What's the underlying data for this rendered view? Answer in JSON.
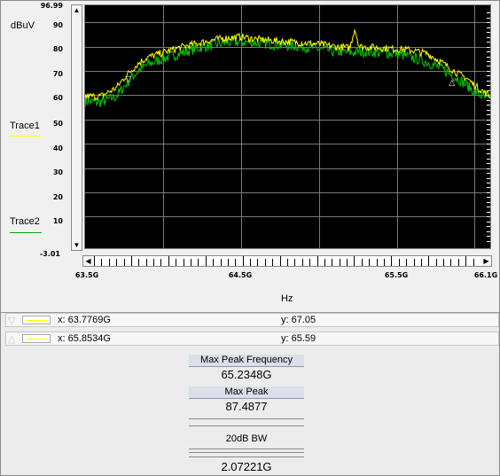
{
  "chart_data": {
    "type": "line",
    "unit_label": "dBuV",
    "xlabel": "Hz",
    "xlim": [
      63.5,
      66.1
    ],
    "ylim": [
      -3.01,
      96.99
    ],
    "y_ticks": [
      "96.99",
      "90",
      "80",
      "70",
      "60",
      "50",
      "40",
      "30",
      "20",
      "10",
      "-3.01"
    ],
    "x_ticks": [
      {
        "v": 63.5,
        "label": "63.5G"
      },
      {
        "v": 64.5,
        "label": "64.5G"
      },
      {
        "v": 65.5,
        "label": "65.5G"
      },
      {
        "v": 66.1,
        "label": "66.1G"
      }
    ],
    "grid": true,
    "series": [
      {
        "name": "Trace1",
        "color": "#ffff00",
        "points": [
          [
            63.5,
            59.5
          ],
          [
            63.6,
            59.5
          ],
          [
            63.7,
            63
          ],
          [
            63.75,
            67
          ],
          [
            63.8,
            70.5
          ],
          [
            63.85,
            73.5
          ],
          [
            63.9,
            75.5
          ],
          [
            64.0,
            77.5
          ],
          [
            64.1,
            79.5
          ],
          [
            64.2,
            81
          ],
          [
            64.3,
            82.5
          ],
          [
            64.4,
            83.5
          ],
          [
            64.5,
            84
          ],
          [
            64.6,
            83
          ],
          [
            64.7,
            82.5
          ],
          [
            64.8,
            82
          ],
          [
            64.9,
            81.5
          ],
          [
            65.0,
            81
          ],
          [
            65.1,
            80
          ],
          [
            65.2,
            79.5
          ],
          [
            65.23,
            87.5
          ],
          [
            65.26,
            80
          ],
          [
            65.4,
            79.5
          ],
          [
            65.5,
            79
          ],
          [
            65.6,
            78.5
          ],
          [
            65.7,
            77
          ],
          [
            65.8,
            73
          ],
          [
            65.9,
            68.5
          ],
          [
            65.95,
            67
          ],
          [
            66.0,
            64
          ],
          [
            66.1,
            59.5
          ]
        ]
      },
      {
        "name": "Trace2",
        "color": "#00cc00",
        "points": [
          [
            63.5,
            57.5
          ],
          [
            63.6,
            57
          ],
          [
            63.7,
            59.5
          ],
          [
            63.75,
            63.5
          ],
          [
            63.8,
            67.5
          ],
          [
            63.85,
            70.5
          ],
          [
            63.9,
            72.5
          ],
          [
            64.0,
            75
          ],
          [
            64.1,
            77
          ],
          [
            64.2,
            79
          ],
          [
            64.3,
            80.5
          ],
          [
            64.4,
            81.5
          ],
          [
            64.5,
            82
          ],
          [
            64.6,
            81.5
          ],
          [
            64.7,
            81
          ],
          [
            64.8,
            80.5
          ],
          [
            64.9,
            80
          ],
          [
            65.0,
            79
          ],
          [
            65.1,
            78
          ],
          [
            65.2,
            77.5
          ],
          [
            65.3,
            78
          ],
          [
            65.4,
            77.5
          ],
          [
            65.5,
            77
          ],
          [
            65.6,
            75.5
          ],
          [
            65.7,
            73.5
          ],
          [
            65.8,
            70.5
          ],
          [
            65.9,
            66.5
          ],
          [
            66.0,
            61.5
          ],
          [
            66.1,
            57.5
          ]
        ]
      }
    ],
    "cursors": [
      {
        "symbol": "▽",
        "x_label": "x: 63.7769G",
        "y_label": "y: 67.05",
        "x": 63.7769,
        "y": 67.05
      },
      {
        "symbol": "△",
        "x_label": "x: 65.8534G",
        "y_label": "y: 65.59",
        "x": 65.8534,
        "y": 65.59
      }
    ],
    "stats": {
      "max_peak_frequency": {
        "label": "Max Peak Frequency",
        "value": "65.2348G"
      },
      "max_peak": {
        "label": "Max Peak",
        "value": "87.4877"
      },
      "bw_20db": {
        "label": "20dB BW",
        "value": "2.07221G"
      }
    }
  }
}
